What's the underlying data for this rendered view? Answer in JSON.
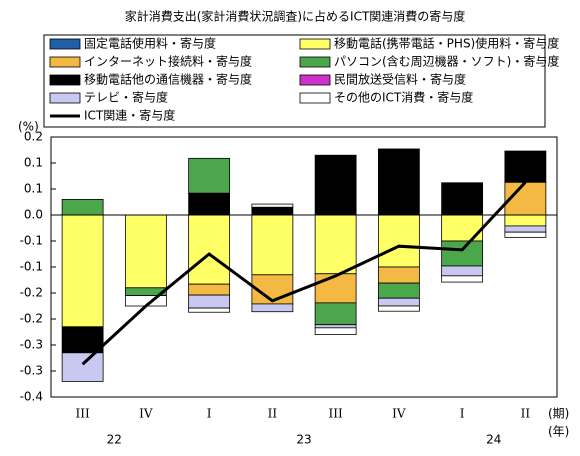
{
  "chart_data": {
    "type": "stacked-bar-line",
    "title": "家計消費支出(家計消費状況調査)に占めるICT関連消費の寄与度",
    "y_unit": "(%)",
    "x_unit": "(期)",
    "year_unit": "(年)",
    "categories": [
      "III",
      "IV",
      "I",
      "II",
      "III",
      "IV",
      "I",
      "II"
    ],
    "years": [
      "22",
      "23",
      "24"
    ],
    "ylim": [
      -0.35,
      0.15
    ],
    "yticks": [
      {
        "value": 0.15,
        "label": "0.2"
      },
      0.1,
      {
        "value": 0.05,
        "label": "0.1"
      },
      {
        "value": 0,
        "label": "0.0"
      },
      {
        "value": -0.05,
        "label": "-0.1"
      },
      -0.1,
      {
        "value": -0.15,
        "label": "-0.2"
      },
      -0.2,
      {
        "value": -0.25,
        "label": "-0.3"
      },
      -0.3,
      {
        "value": -0.35,
        "label": "-0.4"
      }
    ],
    "series": [
      {
        "name": "固定電話使用料・寄与度",
        "color": "#1f5fa8",
        "values": [
          0,
          0,
          0,
          0,
          0,
          0,
          0,
          0
        ]
      },
      {
        "name": "移動電話(携帯電話・PHS)使用料・寄与度",
        "color": "#ffff66",
        "values": [
          -0.215,
          -0.14,
          -0.133,
          -0.115,
          -0.113,
          -0.1,
          -0.05,
          -0.021
        ]
      },
      {
        "name": "インターネット接続料・寄与度",
        "color": "#f4b942",
        "values": [
          0,
          0,
          -0.021,
          -0.056,
          -0.056,
          -0.031,
          0,
          0.063
        ]
      },
      {
        "name": "民間放送受信料・寄与度",
        "color": "#cc33cc",
        "values": [
          0,
          0,
          0,
          0,
          0,
          0,
          0,
          0
        ]
      },
      {
        "name": "移動電話他の通信機器・寄与度",
        "color": "#000000",
        "values": [
          -0.05,
          0,
          0.042,
          0.015,
          0.115,
          0.127,
          0.062,
          0.06
        ]
      },
      {
        "name": "パソコン(含む周辺機器・ソフト)・寄与度",
        "color": "#4ca64c",
        "values": [
          0.03,
          -0.015,
          0.067,
          0,
          -0.042,
          -0.029,
          -0.048,
          0
        ]
      },
      {
        "name": "テレビ・寄与度",
        "color": "#c8c8f0",
        "values": [
          -0.055,
          0,
          -0.025,
          -0.015,
          -0.006,
          -0.015,
          -0.019,
          -0.012
        ]
      },
      {
        "name": "その他のICT消費・寄与度",
        "color": "#ffffff",
        "values": [
          0,
          -0.02,
          -0.008,
          0.006,
          -0.013,
          -0.01,
          -0.012,
          -0.01
        ]
      }
    ],
    "line": {
      "name": "ICT関連・寄与度",
      "color": "#000000",
      "values": [
        -0.287,
        -0.175,
        -0.075,
        -0.165,
        -0.117,
        -0.06,
        -0.067,
        0.063
      ]
    }
  }
}
